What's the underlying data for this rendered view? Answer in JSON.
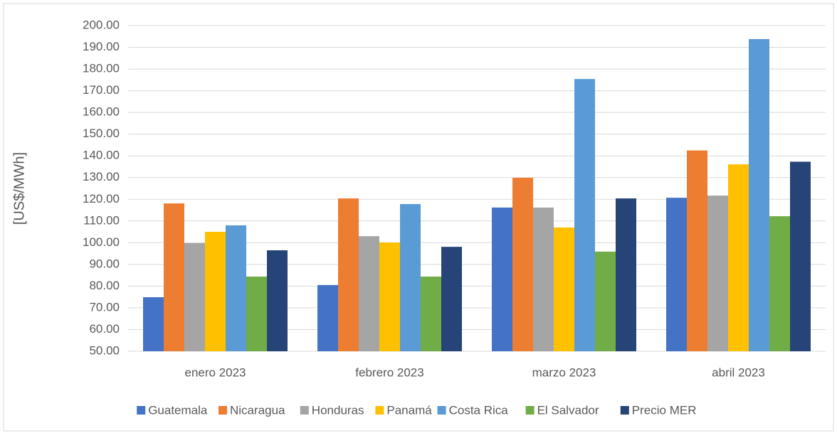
{
  "chart_data": {
    "type": "bar",
    "y_label": "[US$/MWh]",
    "categories": [
      "enero 2023",
      "febrero 2023",
      "marzo 2023",
      "abril 2023"
    ],
    "series": [
      {
        "name": "Guatemala",
        "color": "#4472c4",
        "values": [
          74.9,
          80.5,
          116.2,
          120.7
        ]
      },
      {
        "name": "Nicaragua",
        "color": "#ed7d31",
        "values": [
          118.1,
          120.4,
          129.9,
          142.5
        ]
      },
      {
        "name": "Honduras",
        "color": "#a5a5a5",
        "values": [
          99.8,
          103,
          116.2,
          121.7
        ]
      },
      {
        "name": "Panamá",
        "color": "#ffc000",
        "values": [
          105,
          100.1,
          107,
          136.1
        ]
      },
      {
        "name": "Costa Rica",
        "color": "#5b9bd5",
        "values": [
          108,
          117.8,
          175.4,
          193.8
        ]
      },
      {
        "name": "El Salvador",
        "color": "#70ad47",
        "values": [
          84.4,
          84.4,
          95.9,
          112.2
        ]
      },
      {
        "name": "Precio MER",
        "color": "#264478",
        "values": [
          96.5,
          98.1,
          120.4,
          137.3
        ]
      }
    ],
    "ylim": [
      50,
      200
    ],
    "yticks": [
      {
        "value": 50,
        "label": "50.00"
      },
      {
        "value": 60,
        "label": "60.00"
      },
      {
        "value": 70,
        "label": "70.00"
      },
      {
        "value": 80,
        "label": "80.00"
      },
      {
        "value": 90,
        "label": "90.00"
      },
      {
        "value": 100,
        "label": "100.00"
      },
      {
        "value": 110,
        "label": "110.00"
      },
      {
        "value": 120,
        "label": "120.00"
      },
      {
        "value": 130,
        "label": "130.00"
      },
      {
        "value": 140,
        "label": "140.00"
      },
      {
        "value": 150,
        "label": "150.00"
      },
      {
        "value": 160,
        "label": "160.00"
      },
      {
        "value": 170,
        "label": "170.00"
      },
      {
        "value": 180,
        "label": "180.00"
      },
      {
        "value": 190,
        "label": "190.00"
      },
      {
        "value": 200,
        "label": "200.00"
      }
    ],
    "grid": true,
    "legend": "bottom"
  }
}
